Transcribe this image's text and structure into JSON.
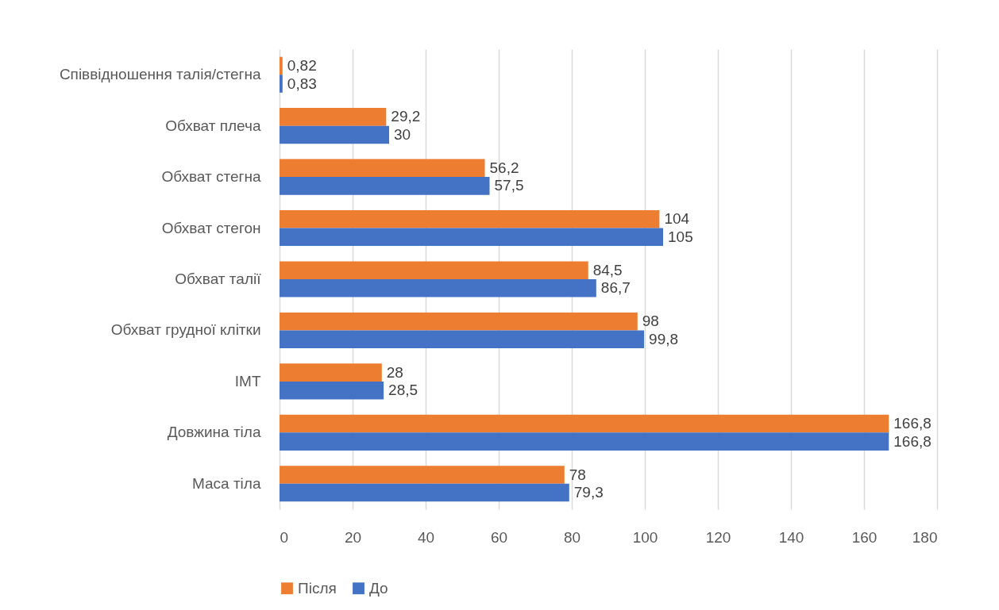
{
  "chart_data": {
    "type": "bar",
    "orientation": "horizontal",
    "categories": [
      "Співвідношення талія/стегна",
      "Обхват плеча",
      "Обхват стегна",
      "Обхват стегон",
      "Обхват талії",
      "Обхват грудної клітки",
      "ІМТ",
      "Довжина тіла",
      "Маса тіла"
    ],
    "series": [
      {
        "name": "Після",
        "color": "#ed7d31",
        "values": [
          0.82,
          29.2,
          56.2,
          104,
          84.5,
          98,
          28,
          166.8,
          78
        ],
        "value_labels": [
          "0,82",
          "29,2",
          "56,2",
          "104",
          "84,5",
          "98",
          "28",
          "166,8",
          "78"
        ]
      },
      {
        "name": "До",
        "color": "#4472c4",
        "values": [
          0.83,
          30,
          57.5,
          105,
          86.7,
          99.8,
          28.5,
          166.8,
          79.3
        ],
        "value_labels": [
          "0,83",
          "30",
          "57,5",
          "105",
          "86,7",
          "99,8",
          "28,5",
          "166,8",
          "79,3"
        ]
      }
    ],
    "xlim": [
      0,
      180
    ],
    "xticks": [
      0,
      20,
      40,
      60,
      80,
      100,
      120,
      140,
      160,
      180
    ],
    "grid": "x",
    "legend": "bottom"
  }
}
